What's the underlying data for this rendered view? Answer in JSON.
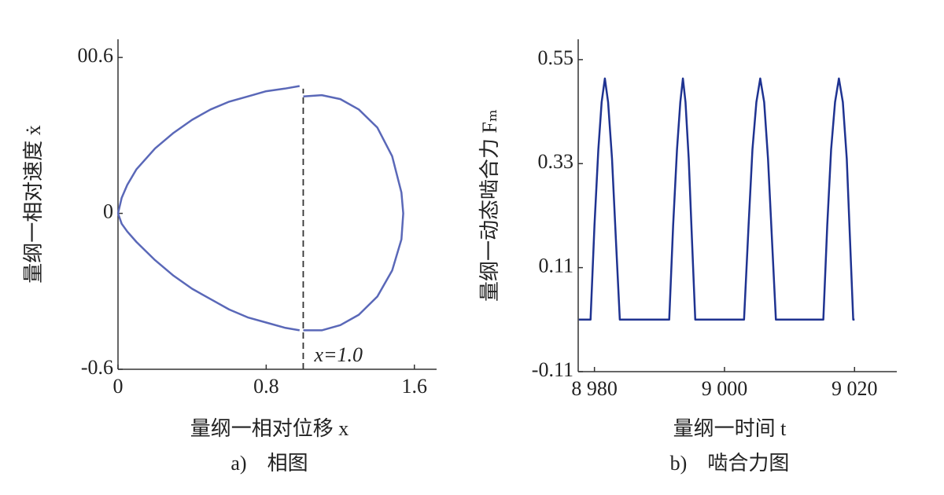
{
  "chart_data": [
    {
      "type": "line",
      "xlabel": "量纲一相对位移 x",
      "ylabel": "量纲一相对速度 ẋ",
      "caption": "a)　相图",
      "xlim": [
        0,
        1.72
      ],
      "ylim": [
        -0.6,
        0.67
      ],
      "xticks": [
        0,
        0.8,
        1.6
      ],
      "yticks": [
        -0.6,
        0,
        {
          "value": 0.6,
          "label": "00.6"
        }
      ],
      "reference_line": {
        "x": 1.0,
        "y_from": -0.6,
        "y_to": 0.48,
        "label": "x=1.0"
      },
      "series": [
        {
          "color": "#5a68b8",
          "x": [
            0,
            0.02,
            0.05,
            0.1,
            0.2,
            0.3,
            0.4,
            0.5,
            0.6,
            0.7,
            0.8,
            0.9,
            0.98,
            null,
            1.0,
            1.1,
            1.2,
            1.3,
            1.4,
            1.48,
            1.53,
            1.54,
            1.53,
            1.48,
            1.4,
            1.3,
            1.2,
            1.1,
            1.0,
            null,
            0.98,
            0.9,
            0.8,
            0.7,
            0.6,
            0.5,
            0.4,
            0.3,
            0.2,
            0.1,
            0.05,
            0.02,
            0
          ],
          "values": [
            0,
            0.06,
            0.11,
            0.17,
            0.25,
            0.31,
            0.36,
            0.4,
            0.43,
            0.45,
            0.47,
            0.48,
            0.49,
            null,
            0.45,
            0.455,
            0.44,
            0.4,
            0.33,
            0.22,
            0.08,
            0,
            -0.1,
            -0.22,
            -0.32,
            -0.39,
            -0.43,
            -0.45,
            -0.45,
            null,
            -0.45,
            -0.44,
            -0.42,
            -0.4,
            -0.37,
            -0.33,
            -0.29,
            -0.24,
            -0.18,
            -0.11,
            -0.07,
            -0.04,
            0
          ]
        }
      ]
    },
    {
      "type": "line",
      "xlabel": "量纲一时间 t",
      "ylabel": "量纲一动态啮合力 Fₘ",
      "caption": "b)　啮合力图",
      "xlim": [
        8977.5,
        9026.5
      ],
      "ylim": [
        -0.11,
        0.593
      ],
      "xticks": [
        {
          "value": 8980,
          "label": "8 980"
        },
        {
          "value": 9000,
          "label": "9 000"
        },
        {
          "value": 9020,
          "label": "9 020"
        }
      ],
      "yticks": [
        -0.11,
        0.11,
        0.33,
        0.55
      ],
      "series": [
        {
          "color": "#1f3391",
          "x": [
            8977.6,
            8979.4,
            8980,
            8980.6,
            8981.1,
            8981.6,
            8982.1,
            8982.7,
            8983.3,
            8983.9,
            8991.5,
            8992.1,
            8992.7,
            8993.2,
            8993.6,
            8994.0,
            8994.5,
            8995.0,
            8995.5,
            9003.0,
            9003.7,
            9004.3,
            9004.9,
            9005.5,
            9006.1,
            9006.7,
            9007.3,
            9007.9,
            9015.2,
            9015.8,
            9016.4,
            9017.0,
            9017.6,
            9018.2,
            9018.8,
            9019.3,
            9019.8,
            9020.0
          ],
          "values": [
            0,
            0,
            0.2,
            0.36,
            0.46,
            0.51,
            0.46,
            0.34,
            0.17,
            0,
            0,
            0.2,
            0.36,
            0.46,
            0.51,
            0.46,
            0.34,
            0.17,
            0,
            0,
            0.2,
            0.36,
            0.46,
            0.51,
            0.46,
            0.34,
            0.17,
            0,
            0,
            0.2,
            0.36,
            0.46,
            0.51,
            0.46,
            0.34,
            0.17,
            0,
            0
          ]
        }
      ]
    }
  ]
}
